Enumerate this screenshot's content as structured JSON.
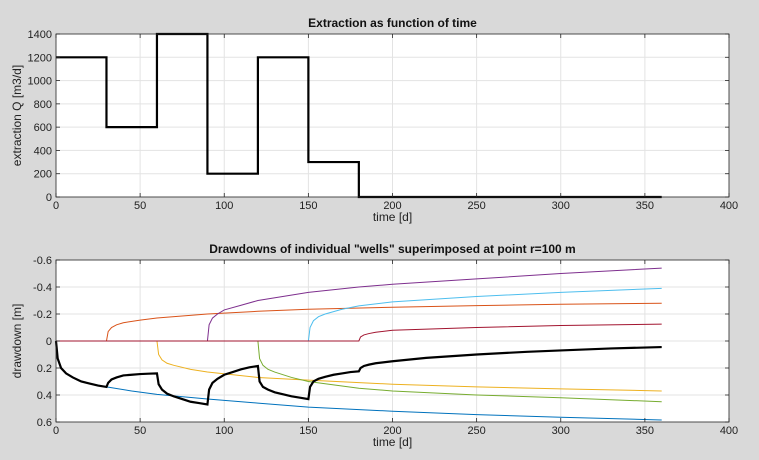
{
  "chart_data": [
    {
      "type": "line",
      "title": "Extraction as function of time",
      "xlabel": "time [d]",
      "ylabel": "extraction Q [m3/d]",
      "xlim": [
        0,
        400
      ],
      "ylim": [
        0,
        1400
      ],
      "xticks": [
        0,
        50,
        100,
        150,
        200,
        250,
        300,
        350,
        400
      ],
      "yticks": [
        0,
        200,
        400,
        600,
        800,
        1000,
        1200,
        1400
      ],
      "grid": true,
      "series": [
        {
          "color": "#000000",
          "step": true,
          "x": [
            0,
            30,
            30,
            60,
            60,
            90,
            90,
            120,
            120,
            150,
            150,
            180,
            180,
            360
          ],
          "y": [
            1200,
            1200,
            600,
            600,
            1400,
            1400,
            200,
            200,
            1200,
            1200,
            300,
            300,
            0,
            0
          ]
        }
      ]
    },
    {
      "type": "line",
      "title": "Drawdowns of individual \"wells\" superimposed at point r=100 m",
      "xlabel": "time [d]",
      "ylabel": "drawdown [m]",
      "xlim": [
        0,
        400
      ],
      "ylim": [
        -0.6,
        0.6
      ],
      "y_reversed": true,
      "xticks": [
        0,
        50,
        100,
        150,
        200,
        250,
        300,
        350,
        400
      ],
      "yticks": [
        -0.6,
        -0.4,
        -0.2,
        0,
        0.2,
        0.4,
        0.6
      ],
      "ytick_labels": [
        "-0.6",
        "-0.4",
        "-0.2",
        "0",
        "0.2",
        "0.4",
        "0.6"
      ],
      "grid": true,
      "series": [
        {
          "color": "#0072bd",
          "x": [
            0,
            1,
            3,
            6,
            10,
            15,
            20,
            30,
            45,
            60,
            90,
            120,
            150,
            200,
            250,
            300,
            360
          ],
          "y": [
            0,
            0.13,
            0.2,
            0.24,
            0.27,
            0.3,
            0.315,
            0.34,
            0.37,
            0.395,
            0.43,
            0.46,
            0.49,
            0.52,
            0.545,
            0.565,
            0.585
          ]
        },
        {
          "color": "#d95319",
          "x": [
            0,
            30,
            31,
            33,
            36,
            40,
            50,
            60,
            90,
            120,
            150,
            200,
            250,
            300,
            360
          ],
          "y": [
            0,
            0,
            -0.07,
            -0.1,
            -0.12,
            -0.135,
            -0.155,
            -0.17,
            -0.2,
            -0.22,
            -0.235,
            -0.25,
            -0.262,
            -0.272,
            -0.28
          ]
        },
        {
          "color": "#edb120",
          "x": [
            0,
            60,
            61,
            63,
            66,
            70,
            80,
            90,
            120,
            150,
            200,
            250,
            300,
            360
          ],
          "y": [
            0,
            0,
            0.1,
            0.14,
            0.165,
            0.18,
            0.21,
            0.23,
            0.27,
            0.29,
            0.32,
            0.34,
            0.355,
            0.37
          ]
        },
        {
          "color": "#7e2f8e",
          "x": [
            0,
            90,
            91,
            93,
            96,
            100,
            110,
            120,
            150,
            180,
            200,
            250,
            300,
            360
          ],
          "y": [
            0,
            0,
            -0.12,
            -0.17,
            -0.2,
            -0.23,
            -0.265,
            -0.3,
            -0.36,
            -0.4,
            -0.42,
            -0.46,
            -0.5,
            -0.54
          ]
        },
        {
          "color": "#77ac30",
          "x": [
            0,
            120,
            121,
            123,
            126,
            130,
            140,
            150,
            180,
            200,
            250,
            300,
            360
          ],
          "y": [
            0,
            0,
            0.13,
            0.18,
            0.21,
            0.23,
            0.27,
            0.3,
            0.35,
            0.37,
            0.4,
            0.42,
            0.45
          ]
        },
        {
          "color": "#4dbeee",
          "x": [
            0,
            150,
            151,
            153,
            156,
            160,
            170,
            180,
            200,
            250,
            300,
            360
          ],
          "y": [
            0,
            0,
            -0.1,
            -0.15,
            -0.18,
            -0.2,
            -0.235,
            -0.26,
            -0.29,
            -0.33,
            -0.36,
            -0.39
          ]
        },
        {
          "color": "#a2142f",
          "x": [
            0,
            180,
            181,
            183,
            186,
            190,
            200,
            250,
            300,
            360
          ],
          "y": [
            0,
            0,
            -0.03,
            -0.045,
            -0.055,
            -0.065,
            -0.08,
            -0.1,
            -0.115,
            -0.125
          ]
        },
        {
          "color": "#000000",
          "bold": true,
          "x": [
            0,
            1,
            3,
            6,
            10,
            15,
            20,
            25,
            30,
            31,
            33,
            36,
            40,
            45,
            50,
            55,
            60,
            61,
            63,
            66,
            70,
            75,
            80,
            85,
            90,
            91,
            93,
            96,
            100,
            105,
            110,
            115,
            120,
            121,
            123,
            126,
            130,
            135,
            140,
            145,
            150,
            151,
            153,
            156,
            160,
            165,
            170,
            175,
            180,
            181,
            183,
            186,
            190,
            200,
            220,
            250,
            280,
            300,
            330,
            360
          ],
          "y": [
            0,
            0.13,
            0.2,
            0.24,
            0.27,
            0.3,
            0.315,
            0.33,
            0.34,
            0.31,
            0.285,
            0.27,
            0.255,
            0.25,
            0.245,
            0.242,
            0.24,
            0.32,
            0.36,
            0.39,
            0.41,
            0.43,
            0.45,
            0.46,
            0.47,
            0.36,
            0.31,
            0.28,
            0.25,
            0.23,
            0.21,
            0.195,
            0.185,
            0.3,
            0.34,
            0.36,
            0.38,
            0.395,
            0.41,
            0.42,
            0.43,
            0.34,
            0.3,
            0.28,
            0.265,
            0.25,
            0.24,
            0.23,
            0.225,
            0.2,
            0.185,
            0.175,
            0.165,
            0.15,
            0.125,
            0.1,
            0.08,
            0.07,
            0.055,
            0.045
          ]
        }
      ]
    }
  ]
}
